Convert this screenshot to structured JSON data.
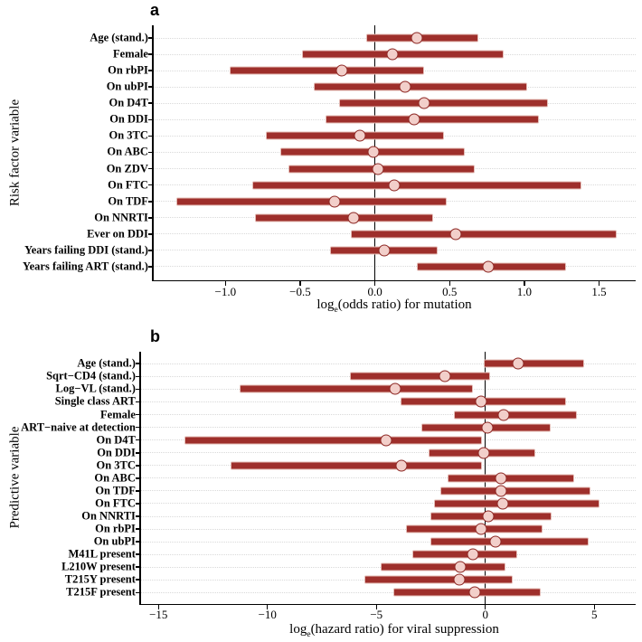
{
  "style": {
    "bar_color": "#9e2f2b",
    "point_fill": "#f2cfca",
    "point_stroke": "#8d2723",
    "axis_color": "#000000",
    "grid_color": "#d9d9d9"
  },
  "chart_data": [
    {
      "type": "forest",
      "panel_label": "a",
      "ylabel": "Risk factor variable",
      "xlabel_parts": {
        "pre": "log",
        "sub": "e",
        "post": "(odds ratio) for mutation"
      },
      "xlim": [
        -1.48,
        1.745
      ],
      "grid": "dotted-horizontal",
      "x_ticks": [
        {
          "value": -1.0,
          "label": "−1.0"
        },
        {
          "value": -0.5,
          "label": "−0.5"
        },
        {
          "value": 0.0,
          "label": "0.0"
        },
        {
          "value": 0.5,
          "label": "0.5"
        },
        {
          "value": 1.0,
          "label": "1.0"
        },
        {
          "value": 1.5,
          "label": "1.5"
        }
      ],
      "rows": [
        {
          "category": "Age (stand.)",
          "estimate": 0.28,
          "ci_low": -0.06,
          "ci_high": 0.69
        },
        {
          "category": "Female",
          "estimate": 0.12,
          "ci_low": -0.49,
          "ci_high": 0.86
        },
        {
          "category": "On rbPI",
          "estimate": -0.22,
          "ci_low": -0.97,
          "ci_high": 0.33
        },
        {
          "category": "On ubPI",
          "estimate": 0.2,
          "ci_low": -0.41,
          "ci_high": 1.02
        },
        {
          "category": "On D4T",
          "estimate": 0.33,
          "ci_low": -0.24,
          "ci_high": 1.16
        },
        {
          "category": "On DDI",
          "estimate": 0.26,
          "ci_low": -0.33,
          "ci_high": 1.1
        },
        {
          "category": "On 3TC",
          "estimate": -0.1,
          "ci_low": -0.73,
          "ci_high": 0.46
        },
        {
          "category": "On ABC",
          "estimate": -0.01,
          "ci_low": -0.63,
          "ci_high": 0.6
        },
        {
          "category": "On ZDV",
          "estimate": 0.02,
          "ci_low": -0.58,
          "ci_high": 0.67
        },
        {
          "category": "On FTC",
          "estimate": 0.13,
          "ci_low": -0.82,
          "ci_high": 1.38
        },
        {
          "category": "On TDF",
          "estimate": -0.27,
          "ci_low": -1.33,
          "ci_high": 0.48
        },
        {
          "category": "On NNRTI",
          "estimate": -0.14,
          "ci_low": -0.8,
          "ci_high": 0.39
        },
        {
          "category": "Ever on DDI",
          "estimate": 0.54,
          "ci_low": -0.16,
          "ci_high": 1.62
        },
        {
          "category": "Years failing DDI (stand.)",
          "estimate": 0.06,
          "ci_low": -0.3,
          "ci_high": 0.42
        },
        {
          "category": "Years failing ART (stand.)",
          "estimate": 0.76,
          "ci_low": 0.28,
          "ci_high": 1.28
        }
      ]
    },
    {
      "type": "forest",
      "panel_label": "b",
      "ylabel": "Predictive variable",
      "xlabel_parts": {
        "pre": "log",
        "sub": "e",
        "post": "(hazard ratio) for viral suppression"
      },
      "xlim": [
        -15.8,
        6.9
      ],
      "grid": "dotted-horizontal",
      "x_ticks": [
        {
          "value": -15,
          "label": "−15"
        },
        {
          "value": -10,
          "label": "−10"
        },
        {
          "value": -5,
          "label": "−5"
        },
        {
          "value": 0,
          "label": "0"
        },
        {
          "value": 5,
          "label": "5"
        }
      ],
      "rows": [
        {
          "category": "Age (stand.)",
          "estimate": 1.52,
          "ci_low": -0.07,
          "ci_high": 4.55
        },
        {
          "category": "Sqrt−CD4 (stand.)",
          "estimate": -1.85,
          "ci_low": -6.23,
          "ci_high": 0.2
        },
        {
          "category": "Log−VL (stand.)",
          "estimate": -4.13,
          "ci_low": -11.27,
          "ci_high": -0.59
        },
        {
          "category": "Single class ART",
          "estimate": -0.2,
          "ci_low": -3.9,
          "ci_high": 3.7
        },
        {
          "category": "Female",
          "estimate": 0.83,
          "ci_low": -1.44,
          "ci_high": 4.21
        },
        {
          "category": "ART−naive at detection",
          "estimate": 0.09,
          "ci_low": -2.93,
          "ci_high": 3.0
        },
        {
          "category": "On D4T",
          "estimate": -4.57,
          "ci_low": -13.8,
          "ci_high": -0.16
        },
        {
          "category": "On DDI",
          "estimate": -0.06,
          "ci_low": -2.61,
          "ci_high": 2.29
        },
        {
          "category": "On 3TC",
          "estimate": -3.86,
          "ci_low": -11.71,
          "ci_high": -0.15
        },
        {
          "category": "On ABC",
          "estimate": 0.72,
          "ci_low": -1.73,
          "ci_high": 4.07
        },
        {
          "category": "On TDF",
          "estimate": 0.72,
          "ci_low": -2.08,
          "ci_high": 4.83
        },
        {
          "category": "On FTC",
          "estimate": 0.79,
          "ci_low": -2.36,
          "ci_high": 5.24
        },
        {
          "category": "On NNRTI",
          "estimate": 0.14,
          "ci_low": -2.5,
          "ci_high": 3.03
        },
        {
          "category": "On rbPI",
          "estimate": -0.21,
          "ci_low": -3.64,
          "ci_high": 2.64
        },
        {
          "category": "On ubPI",
          "estimate": 0.45,
          "ci_low": -2.53,
          "ci_high": 4.75
        },
        {
          "category": "M41L present",
          "estimate": -0.59,
          "ci_low": -3.35,
          "ci_high": 1.46
        },
        {
          "category": "L210W present",
          "estimate": -1.15,
          "ci_low": -4.8,
          "ci_high": 0.91
        },
        {
          "category": "T215Y present",
          "estimate": -1.19,
          "ci_low": -5.57,
          "ci_high": 1.27
        },
        {
          "category": "T215F present",
          "estimate": -0.47,
          "ci_low": -4.23,
          "ci_high": 2.54
        }
      ]
    }
  ]
}
